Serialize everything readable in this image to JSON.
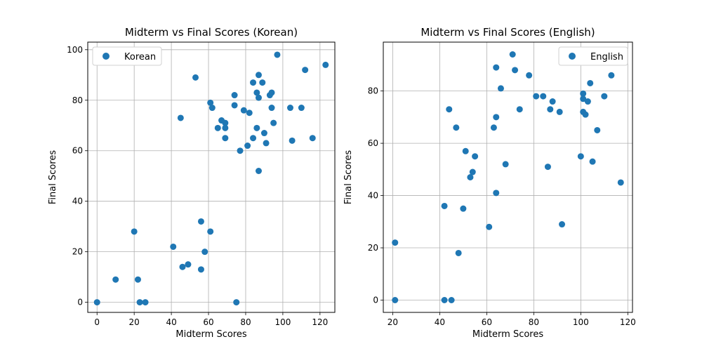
{
  "chart_data": [
    {
      "type": "scatter",
      "title": "Midterm vs Final Scores (Korean)",
      "xlabel": "Midterm Scores",
      "ylabel": "Final Scores",
      "xlim": [
        -5,
        128
      ],
      "ylim": [
        -4,
        103
      ],
      "xticks": [
        0,
        20,
        40,
        60,
        80,
        100,
        120
      ],
      "yticks": [
        0,
        20,
        40,
        60,
        80,
        100
      ],
      "grid": true,
      "legend_position": "upper-left",
      "series": [
        {
          "name": "Korean",
          "color": "#1f77b4",
          "points": [
            [
              0,
              0
            ],
            [
              10,
              9
            ],
            [
              20,
              28
            ],
            [
              22,
              9
            ],
            [
              23,
              0
            ],
            [
              26,
              0
            ],
            [
              41,
              22
            ],
            [
              45,
              73
            ],
            [
              46,
              14
            ],
            [
              49,
              15
            ],
            [
              53,
              89
            ],
            [
              56,
              32
            ],
            [
              56,
              13
            ],
            [
              58,
              20
            ],
            [
              61,
              28
            ],
            [
              61,
              79
            ],
            [
              62,
              77
            ],
            [
              65,
              69
            ],
            [
              67,
              72
            ],
            [
              69,
              69
            ],
            [
              69,
              71
            ],
            [
              69,
              65
            ],
            [
              74,
              82
            ],
            [
              74,
              78
            ],
            [
              75,
              0
            ],
            [
              77,
              60
            ],
            [
              79,
              76
            ],
            [
              81,
              62
            ],
            [
              82,
              75
            ],
            [
              84,
              87
            ],
            [
              84,
              65
            ],
            [
              86,
              83
            ],
            [
              86,
              69
            ],
            [
              87,
              90
            ],
            [
              87,
              81
            ],
            [
              87,
              52
            ],
            [
              89,
              87
            ],
            [
              90,
              67
            ],
            [
              91,
              63
            ],
            [
              93,
              82
            ],
            [
              94,
              83
            ],
            [
              94,
              77
            ],
            [
              95,
              71
            ],
            [
              97,
              98
            ],
            [
              104,
              77
            ],
            [
              105,
              64
            ],
            [
              110,
              77
            ],
            [
              112,
              92
            ],
            [
              116,
              65
            ],
            [
              123,
              94
            ]
          ]
        }
      ]
    },
    {
      "type": "scatter",
      "title": "Midterm vs Final Scores (English)",
      "xlabel": "Midterm Scores",
      "ylabel": "Final Scores",
      "xlim": [
        16,
        122
      ],
      "ylim": [
        -4.7,
        98.7
      ],
      "xticks": [
        20,
        40,
        60,
        80,
        100,
        120
      ],
      "yticks": [
        0,
        20,
        40,
        60,
        80
      ],
      "grid": true,
      "legend_position": "upper-right",
      "series": [
        {
          "name": "English",
          "color": "#1f77b4",
          "points": [
            [
              21,
              22
            ],
            [
              21,
              0
            ],
            [
              42,
              36
            ],
            [
              42,
              0
            ],
            [
              44,
              73
            ],
            [
              45,
              0
            ],
            [
              47,
              66
            ],
            [
              48,
              18
            ],
            [
              50,
              35
            ],
            [
              51,
              57
            ],
            [
              53,
              47
            ],
            [
              54,
              49
            ],
            [
              55,
              55
            ],
            [
              61,
              28
            ],
            [
              63,
              66
            ],
            [
              64,
              89
            ],
            [
              64,
              70
            ],
            [
              64,
              41
            ],
            [
              66,
              81
            ],
            [
              68,
              52
            ],
            [
              71,
              94
            ],
            [
              72,
              88
            ],
            [
              74,
              73
            ],
            [
              78,
              86
            ],
            [
              81,
              78
            ],
            [
              84,
              78
            ],
            [
              86,
              51
            ],
            [
              87,
              73
            ],
            [
              88,
              76
            ],
            [
              91,
              72
            ],
            [
              92,
              29
            ],
            [
              100,
              55
            ],
            [
              101,
              79
            ],
            [
              101,
              77
            ],
            [
              101,
              72
            ],
            [
              102,
              71
            ],
            [
              103,
              76
            ],
            [
              104,
              83
            ],
            [
              105,
              53
            ],
            [
              107,
              65
            ],
            [
              110,
              78
            ],
            [
              113,
              86
            ],
            [
              117,
              45
            ]
          ]
        }
      ]
    }
  ]
}
